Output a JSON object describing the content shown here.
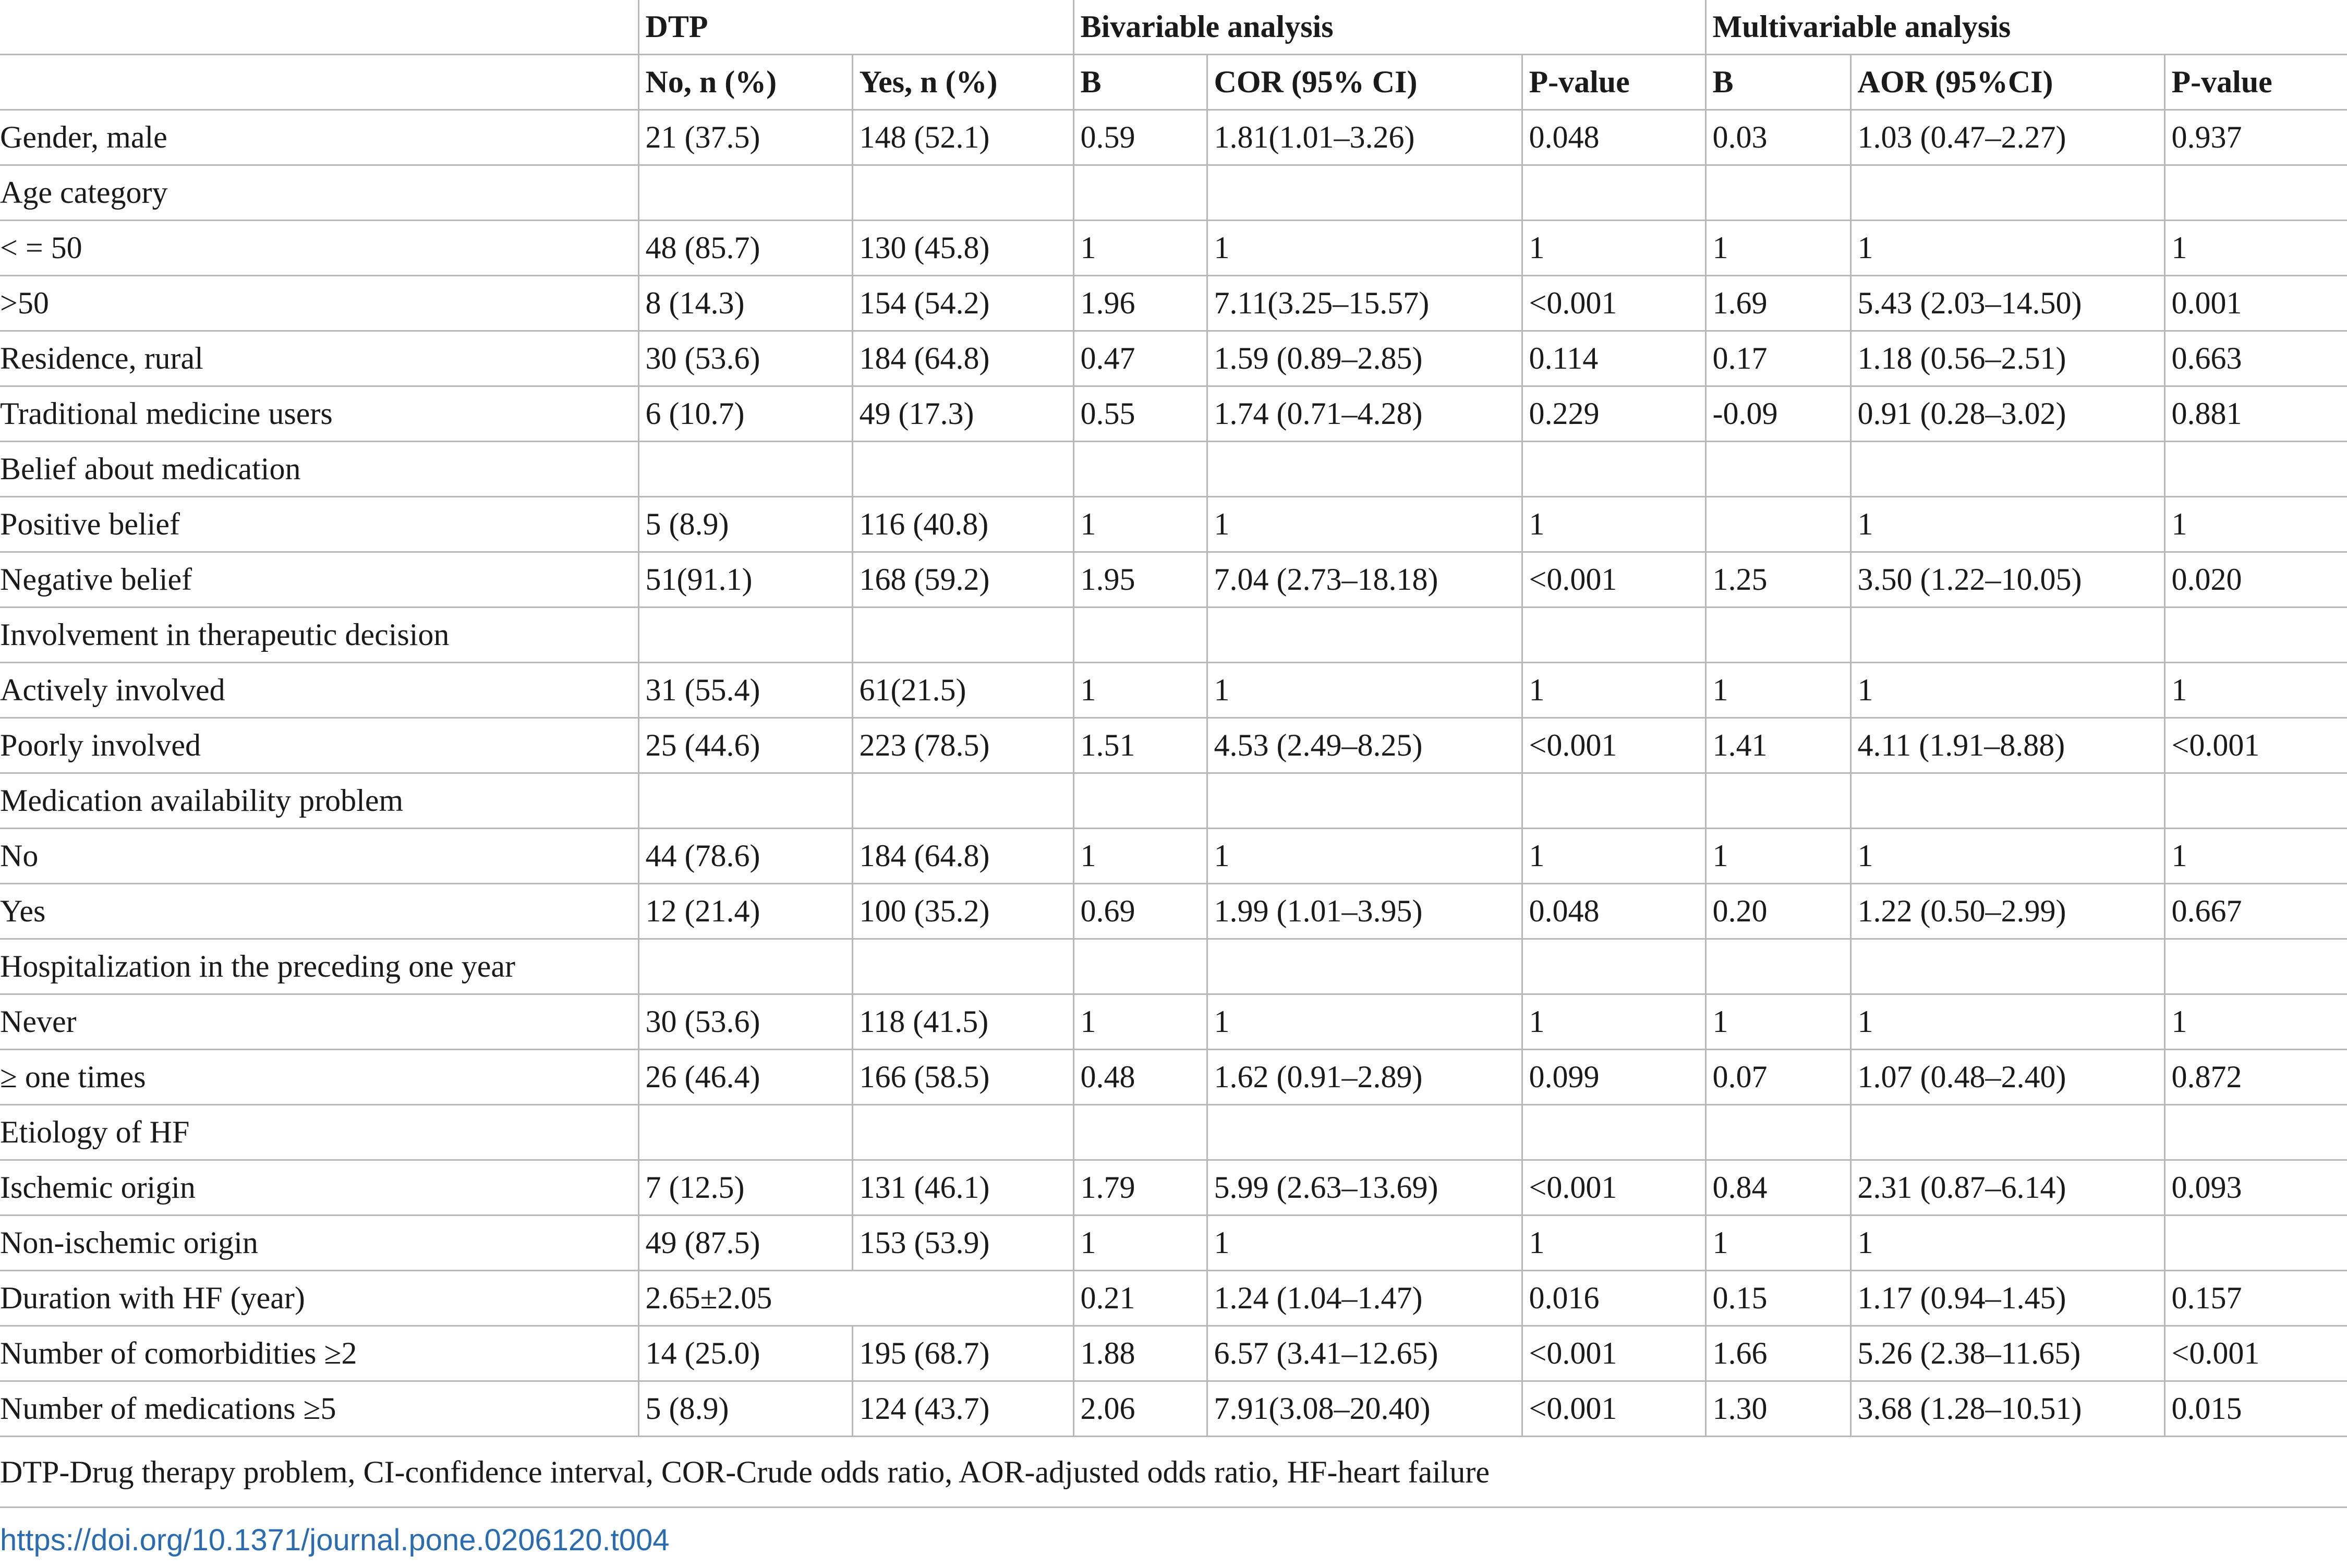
{
  "table": {
    "group_headers": {
      "dtp": "DTP",
      "bivariable": "Bivariable analysis",
      "multivariable": "Multivariable analysis"
    },
    "sub_headers": [
      "No, n (%)",
      "Yes, n (%)",
      "B",
      "COR (95% CI)",
      "P-value",
      "B",
      "AOR (95%CI)",
      "P-value"
    ],
    "rows": [
      {
        "label": "Gender, male",
        "cells": [
          "21 (37.5)",
          "148 (52.1)",
          "0.59",
          "1.81(1.01–3.26)",
          "0.048",
          "0.03",
          "1.03 (0.47–2.27)",
          "0.937"
        ]
      },
      {
        "label": "Age category",
        "cells": [
          "",
          "",
          "",
          "",
          "",
          "",
          "",
          ""
        ]
      },
      {
        "label": "< = 50",
        "cells": [
          "48 (85.7)",
          "130 (45.8)",
          "1",
          "1",
          "1",
          "1",
          "1",
          "1"
        ]
      },
      {
        "label": ">50",
        "cells": [
          "8 (14.3)",
          "154 (54.2)",
          "1.96",
          "7.11(3.25–15.57)",
          "<0.001",
          "1.69",
          "5.43 (2.03–14.50)",
          "0.001"
        ]
      },
      {
        "label": "Residence, rural",
        "cells": [
          "30 (53.6)",
          "184 (64.8)",
          "0.47",
          "1.59 (0.89–2.85)",
          "0.114",
          "0.17",
          "1.18 (0.56–2.51)",
          "0.663"
        ]
      },
      {
        "label": "Traditional medicine users",
        "cells": [
          "6 (10.7)",
          "49 (17.3)",
          "0.55",
          "1.74 (0.71–4.28)",
          "0.229",
          "-0.09",
          "0.91 (0.28–3.02)",
          "0.881"
        ]
      },
      {
        "label": "Belief about medication",
        "cells": [
          "",
          "",
          "",
          "",
          "",
          "",
          "",
          ""
        ]
      },
      {
        "label": "Positive belief",
        "cells": [
          "5 (8.9)",
          "116 (40.8)",
          "1",
          "1",
          "1",
          "",
          "1",
          "1"
        ]
      },
      {
        "label": "Negative belief",
        "cells": [
          "51(91.1)",
          "168 (59.2)",
          "1.95",
          "7.04 (2.73–18.18)",
          "<0.001",
          "1.25",
          "3.50 (1.22–10.05)",
          "0.020"
        ]
      },
      {
        "label": "Involvement in therapeutic decision",
        "cells": [
          "",
          "",
          "",
          "",
          "",
          "",
          "",
          ""
        ]
      },
      {
        "label": "Actively involved",
        "cells": [
          "31 (55.4)",
          "61(21.5)",
          "1",
          "1",
          "1",
          "1",
          "1",
          "1"
        ]
      },
      {
        "label": "Poorly involved",
        "cells": [
          "25 (44.6)",
          "223 (78.5)",
          "1.51",
          "4.53 (2.49–8.25)",
          "<0.001",
          "1.41",
          "4.11 (1.91–8.88)",
          "<0.001"
        ]
      },
      {
        "label": "Medication availability problem",
        "cells": [
          "",
          "",
          "",
          "",
          "",
          "",
          "",
          ""
        ]
      },
      {
        "label": "No",
        "cells": [
          "44 (78.6)",
          "184 (64.8)",
          "1",
          "1",
          "1",
          "1",
          "1",
          "1"
        ]
      },
      {
        "label": "Yes",
        "cells": [
          "12 (21.4)",
          "100 (35.2)",
          "0.69",
          "1.99 (1.01–3.95)",
          "0.048",
          "0.20",
          "1.22 (0.50–2.99)",
          "0.667"
        ]
      },
      {
        "label": "Hospitalization in the preceding one year",
        "cells": [
          "",
          "",
          "",
          "",
          "",
          "",
          "",
          ""
        ]
      },
      {
        "label": "Never",
        "cells": [
          "30 (53.6)",
          "118 (41.5)",
          "1",
          "1",
          "1",
          "1",
          "1",
          "1"
        ]
      },
      {
        "label": "≥ one times",
        "cells": [
          "26 (46.4)",
          "166 (58.5)",
          "0.48",
          "1.62 (0.91–2.89)",
          "0.099",
          "0.07",
          "1.07 (0.48–2.40)",
          "0.872"
        ]
      },
      {
        "label": "Etiology of HF",
        "cells": [
          "",
          "",
          "",
          "",
          "",
          "",
          "",
          ""
        ]
      },
      {
        "label": "Ischemic origin",
        "cells": [
          "7 (12.5)",
          "131 (46.1)",
          "1.79",
          "5.99 (2.63–13.69)",
          "<0.001",
          "0.84",
          "2.31 (0.87–6.14)",
          "0.093"
        ]
      },
      {
        "label": "Non-ischemic origin",
        "cells": [
          "49 (87.5)",
          "153 (53.9)",
          "1",
          "1",
          "1",
          "1",
          "1",
          ""
        ]
      },
      {
        "label": "Duration with HF (year)",
        "merged": "2.65±2.05",
        "cells": [
          "0.21",
          "1.24 (1.04–1.47)",
          "0.016",
          "0.15",
          "1.17 (0.94–1.45)",
          "0.157"
        ]
      },
      {
        "label": "Number of comorbidities ≥2",
        "cells": [
          "14 (25.0)",
          "195 (68.7)",
          "1.88",
          "6.57 (3.41–12.65)",
          "<0.001",
          "1.66",
          "5.26 (2.38–11.65)",
          "<0.001"
        ]
      },
      {
        "label": "Number of medications ≥5",
        "cells": [
          "5 (8.9)",
          "124 (43.7)",
          "2.06",
          "7.91(3.08–20.40)",
          "<0.001",
          "1.30",
          "3.68 (1.28–10.51)",
          "0.015"
        ]
      }
    ]
  },
  "footnote": "DTP-Drug therapy problem, CI-confidence interval, COR-Crude odds ratio, AOR-adjusted odds ratio, HF-heart failure",
  "doi": "https://doi.org/10.1371/journal.pone.0206120.t004"
}
